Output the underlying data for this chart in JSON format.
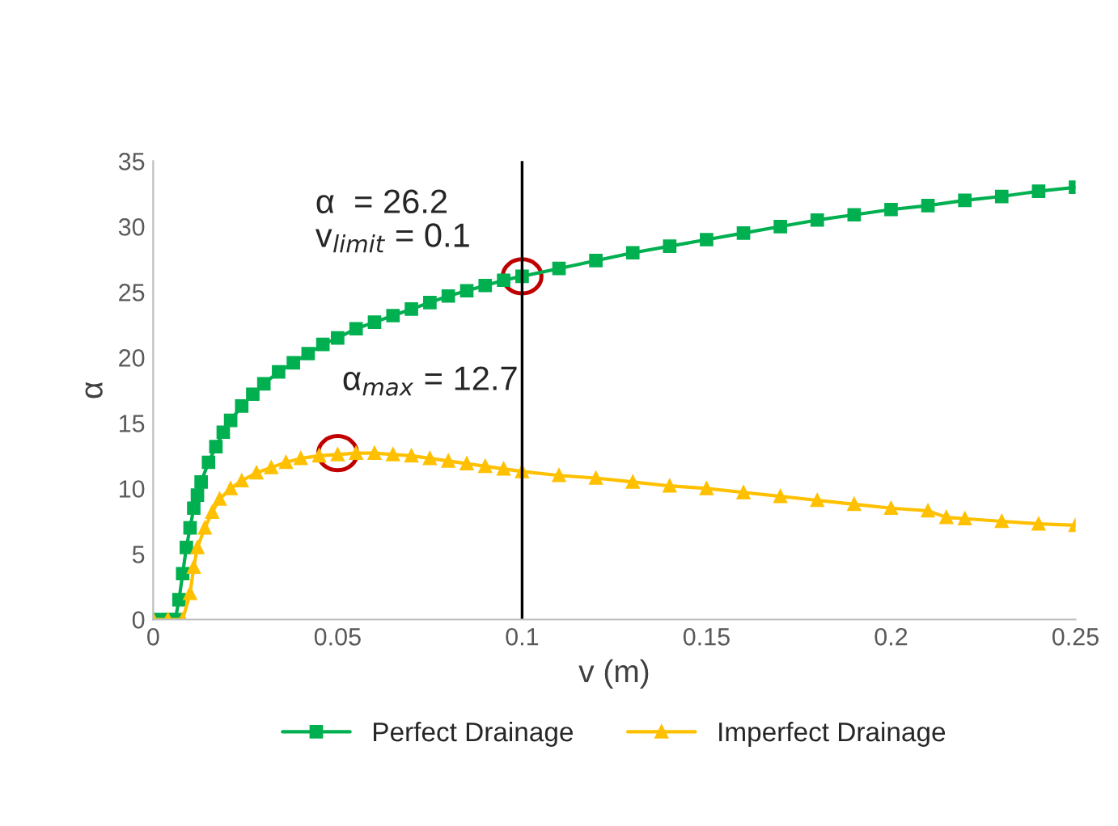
{
  "chart_data": {
    "type": "line",
    "xlabel": "v (m)",
    "ylabel": "α",
    "xlim": [
      0,
      0.25
    ],
    "ylim": [
      0,
      35
    ],
    "xticks": [
      0,
      0.05,
      0.1,
      0.15,
      0.2,
      0.25
    ],
    "yticks": [
      0,
      5,
      10,
      15,
      20,
      25,
      30,
      35
    ],
    "grid": false,
    "legend": "bottom",
    "series": [
      {
        "name": "Perfect Drainage",
        "color": "#00b050",
        "marker": "square",
        "x": [
          0,
          0.002,
          0.004,
          0.006,
          0.007,
          0.008,
          0.009,
          0.01,
          0.011,
          0.012,
          0.013,
          0.015,
          0.017,
          0.019,
          0.021,
          0.024,
          0.027,
          0.03,
          0.034,
          0.038,
          0.042,
          0.046,
          0.05,
          0.055,
          0.06,
          0.065,
          0.07,
          0.075,
          0.08,
          0.085,
          0.09,
          0.095,
          0.1,
          0.11,
          0.12,
          0.13,
          0.14,
          0.15,
          0.16,
          0.17,
          0.18,
          0.19,
          0.2,
          0.21,
          0.22,
          0.23,
          0.24,
          0.25
        ],
        "values": [
          0,
          0,
          0,
          0,
          1.5,
          3.5,
          5.5,
          7,
          8.5,
          9.5,
          10.5,
          12,
          13.2,
          14.3,
          15.2,
          16.3,
          17.2,
          18,
          18.9,
          19.6,
          20.3,
          21,
          21.5,
          22.2,
          22.7,
          23.2,
          23.7,
          24.2,
          24.7,
          25.1,
          25.5,
          25.9,
          26.2,
          26.8,
          27.4,
          28,
          28.5,
          29,
          29.5,
          30,
          30.5,
          30.9,
          31.3,
          31.6,
          32,
          32.3,
          32.7,
          33
        ]
      },
      {
        "name": "Imperfect Drainage",
        "color": "#ffc000",
        "marker": "triangle",
        "x": [
          0,
          0.004,
          0.008,
          0.01,
          0.011,
          0.012,
          0.014,
          0.016,
          0.018,
          0.021,
          0.024,
          0.028,
          0.032,
          0.036,
          0.04,
          0.045,
          0.05,
          0.055,
          0.06,
          0.065,
          0.07,
          0.075,
          0.08,
          0.085,
          0.09,
          0.095,
          0.1,
          0.11,
          0.12,
          0.13,
          0.14,
          0.15,
          0.16,
          0.17,
          0.18,
          0.19,
          0.2,
          0.21,
          0.215,
          0.22,
          0.23,
          0.24,
          0.25
        ],
        "values": [
          0,
          0,
          0,
          2,
          4,
          5.5,
          7,
          8.2,
          9.2,
          10,
          10.6,
          11.2,
          11.6,
          12,
          12.3,
          12.5,
          12.6,
          12.7,
          12.7,
          12.6,
          12.5,
          12.3,
          12.1,
          11.9,
          11.7,
          11.5,
          11.3,
          11,
          10.8,
          10.5,
          10.2,
          10,
          9.7,
          9.4,
          9.1,
          8.8,
          8.5,
          8.3,
          7.8,
          7.7,
          7.5,
          7.3,
          7.2
        ]
      }
    ],
    "ref_lines": [
      {
        "axis": "x",
        "value": 0.1,
        "color": "#000000"
      }
    ],
    "annotations": [
      {
        "text": "α  = 26.2\nv$_{limit}$ = 0.1",
        "x": 0.1,
        "y": 26.2
      },
      {
        "text": "α$_{max}$ = 12.7",
        "x": 0.05,
        "y": 12.7
      }
    ]
  }
}
